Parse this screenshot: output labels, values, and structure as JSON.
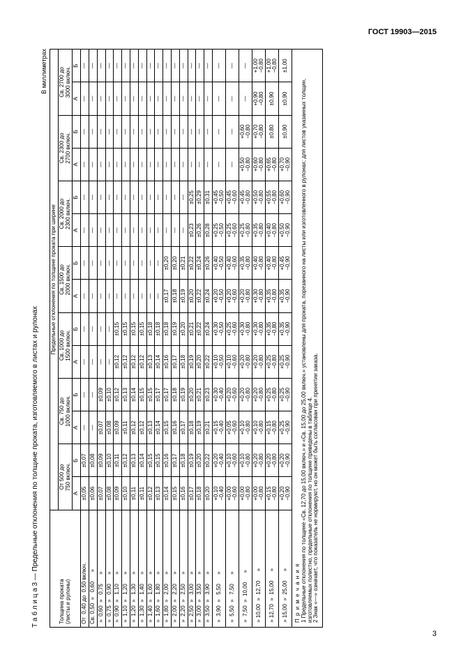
{
  "doc": {
    "standard": "ГОСТ 19903—2015",
    "tableTitle": "Т а б л и ц а   3   —   Предельные отклонения по толщине проката, изготовляемого в листах и рулонах",
    "units": "В миллиметрах",
    "pageNum": "3"
  },
  "headers": {
    "thickness": "Толщина проката\n(листы и рулоны)",
    "mainHeader": "Предельные отклонения по толщине проката при ширине",
    "cols": [
      "От 500 до\n750 включ.",
      "Св. 750 до\n1000 включ.",
      "Св. 1000 до\n1500 включ.",
      "Св. 1500 до\n2000 включ.",
      "Св. 2000 до\n2300 включ.",
      "Св. 2300 до\n2700 включ.",
      "Св. 2700 до\n3000 включ."
    ],
    "subA": "А",
    "subB": "Б"
  },
  "rows": [
    {
      "t": "От  0,40 до  0,50 включ.",
      "c": [
        "±0,05",
        "±0,07",
        "—",
        "—",
        "—",
        "—",
        "—",
        "—",
        "—",
        "—",
        "—",
        "—",
        "—",
        "—"
      ]
    },
    {
      "t": "Св. 0,50  »   0,60      »",
      "c": [
        "±0,06",
        "±0,08",
        "—",
        "—",
        "—",
        "—",
        "—",
        "—",
        "—",
        "—",
        "—",
        "—",
        "—",
        "—"
      ]
    },
    {
      "t": " »  0,60  »   0,75      »",
      "c": [
        "±0,07",
        "±0,09",
        "±0,07",
        "±0,09",
        "—",
        "—",
        "—",
        "—",
        "—",
        "—",
        "—",
        "—",
        "—",
        "—"
      ]
    },
    {
      "t": " »  0,75  »   0,90      »",
      "c": [
        "±0,08",
        "±0,10",
        "±0,08",
        "±0,10",
        "—",
        "—",
        "—",
        "—",
        "—",
        "—",
        "—",
        "—",
        "—",
        "—"
      ]
    },
    {
      "t": " »  0,90  »   1,10      »",
      "c": [
        "±0,09",
        "±0,11",
        "±0,09",
        "±0,12",
        "±0,12",
        "±0,15",
        "—",
        "—",
        "—",
        "—",
        "—",
        "—",
        "—",
        "—"
      ]
    },
    {
      "t": " »  1,10  »   1,20      »",
      "c": [
        "±0,10",
        "±0,12",
        "±0,11",
        "±0,13",
        "±0,12",
        "±0,15",
        "—",
        "—",
        "—",
        "—",
        "—",
        "—",
        "—",
        "—"
      ]
    },
    {
      "t": " »  1,20  »   1,30      »",
      "c": [
        "±0,11",
        "±0,13",
        "±0,12",
        "±0,14",
        "±0,12",
        "±0,15",
        "—",
        "—",
        "—",
        "—",
        "—",
        "—",
        "—",
        "—"
      ]
    },
    {
      "t": " »  1,30  »   1,40      »",
      "c": [
        "±0,11",
        "±0,14",
        "±0,12",
        "±0,15",
        "±0,12",
        "±0,15",
        "—",
        "—",
        "—",
        "—",
        "—",
        "—",
        "—",
        "—"
      ]
    },
    {
      "t": " »  1,40  »   1,60      »",
      "c": [
        "±0,12",
        "±0,15",
        "±0,13",
        "±0,15",
        "±0,13",
        "±0,18",
        "—",
        "—",
        "—",
        "—",
        "—",
        "—",
        "—",
        "—"
      ]
    },
    {
      "t": " »  1,60  »   1,80      »",
      "c": [
        "±0,13",
        "±0,15",
        "±0,14",
        "±0,17",
        "±0,14",
        "±0,18",
        "—",
        "—",
        "—",
        "—",
        "—",
        "—",
        "—",
        "—"
      ]
    },
    {
      "t": " »  1,80  »   2,00      »",
      "c": [
        "±0,14",
        "±0,16",
        "±0,15",
        "±0,17",
        "±0,16",
        "±0,18",
        "±0,17",
        "±0,20",
        "—",
        "—",
        "—",
        "—",
        "—",
        "—"
      ]
    },
    {
      "t": " »  2,00  »   2,20      »",
      "c": [
        "±0,15",
        "±0,17",
        "±0,16",
        "±0,18",
        "±0,17",
        "±0,19",
        "±0,18",
        "±0,20",
        "—",
        "—",
        "—",
        "—",
        "—",
        "—"
      ]
    },
    {
      "t": " »  2,20  »   2,50      »",
      "c": [
        "±0,16",
        "±0,18",
        "±0,17",
        "±0,19",
        "±0,18",
        "±0,20",
        "±0,19",
        "±0,21",
        "—",
        "—",
        "—",
        "—",
        "—",
        "—"
      ]
    },
    {
      "t": " »  2,50  »   3,00      »",
      "c": [
        "±0,17",
        "±0,19",
        "±0,18",
        "±0,20",
        "±0,19",
        "±0,21",
        "±0,20",
        "±0,22",
        "±0,23",
        "±0,25",
        "—",
        "—",
        "—",
        "—"
      ]
    },
    {
      "t": " »  3,00  »   3,50      »",
      "c": [
        "±0,18",
        "±0,20",
        "±0,19",
        "±0,21",
        "±0,20",
        "±0,22",
        "±0,22",
        "±0,24",
        "±0,26",
        "±0,29",
        "—",
        "—",
        "—",
        "—"
      ]
    },
    {
      "t": " »  3,50  »   3,90      »",
      "c": [
        "±0,20",
        "±0,22",
        "±0,21",
        "±0,23",
        "±0,22",
        "±0,24",
        "±0,24",
        "±0,26",
        "±0,28",
        "±0,31",
        "—",
        "—",
        "—",
        "—"
      ]
    },
    {
      "t": " »  3,90  »   5,50      »",
      "c": [
        "+0,10\n−0,40",
        "+0,20\n−0,40",
        "+0,15\n−0,40",
        "+0,30\n−0,40",
        "+0,10\n−0,50",
        "+0,30\n−0,50",
        "+0,20\n−0,50",
        "+0,40\n−0,50",
        "+0,25\n−0,50",
        "+0,45\n−0,50",
        "—",
        "—",
        "—",
        "—"
      ]
    },
    {
      "t": " »  5,50  »   7,50      »",
      "c": [
        "+0,00\n−0,60",
        "+0,10\n−0,60",
        "+0,05\n−0,60",
        "+0,20\n−0,60",
        "+0,10\n−0,60",
        "+0,25\n−0,60",
        "+0,20\n−0,60",
        "+0,40\n−0,60",
        "+0,25\n−0,60",
        "+0,45\n−0,60",
        "—",
        "—",
        "—",
        "—"
      ]
    },
    {
      "t": " »  7,50  »  10,00      »",
      "c": [
        "+0,00\n−0,80",
        "+0,10\n−0,80",
        "+0,10\n−0,80",
        "+0,20\n−0,80",
        "+0,20\n−0,80",
        "+0,30\n−0,80",
        "+0,20\n−0,80",
        "+0,35\n−0,80",
        "+0,25\n−0,80",
        "+0,45\n−0,80",
        "+0,50\n−0,80",
        "+0,60\n−0,80",
        "—",
        "—"
      ]
    },
    {
      "t": " » 10,00  »  12,70      »",
      "c": [
        "+0,00\n−0,80",
        "+0,20\n−0,80",
        "+0,10\n−0,80",
        "+0,20\n−0,80",
        "+0,20\n−0,80",
        "+0,30\n−0,80",
        "+0,30\n−0,80",
        "+0,40\n−0,80",
        "+0,35\n−0,80",
        "+0,50\n−0,80",
        "+0,60\n−0,80",
        "+0,70\n−0,80",
        "+0,90\n−0,80",
        "+1,00\n−0,80"
      ]
    },
    {
      "t": " » 12,70  »  15,00      »",
      "c": [
        "+0,15\n−0,80",
        "+0,20\n−0,80",
        "+0,15\n−0,80",
        "+0,25\n−0,80",
        "+0,25\n−0,80",
        "+0,35\n−0,80",
        "+0,35\n−0,80",
        "+0,40\n−0,80",
        "+0,40\n−0,80",
        "+0,55\n−0,80",
        "+0,65\n−0,80",
        "±0,80",
        "±0,90",
        "+1,00\n−0,80"
      ]
    },
    {
      "t": " » 15,00  »  25,00      »",
      "c": [
        "+0,20\n−0,90",
        "+0,20\n−0,90",
        "+0,25\n−0,90",
        "+0,25\n−0,90",
        "+0,25\n−0,90",
        "+0,35\n−0,90",
        "+0,35\n−0,90",
        "+0,45\n−0,90",
        "+0,50\n−0,90",
        "+0,60\n−0,90",
        "+0,70\n−0,90",
        "±0,90",
        "±0,90",
        "±1,00"
      ]
    }
  ],
  "notes": {
    "title": "П р и м е ч а н и я",
    "line1": "1 Предельные отклонения по толщине «Св. 12,70 до 15,00 включ.» и «Св. 15,00 до 25,00 включ.» установлены для проката, порезанного на листы или изготовленного в рулонах; для листов указанных толщин, изготовляемых полистно, предельные отклонения по толщине приведены в таблице 4.",
    "line2": "2 Знак «—» означает, что показатель не нормируют, но он может быть согласован при принятии заказа."
  }
}
